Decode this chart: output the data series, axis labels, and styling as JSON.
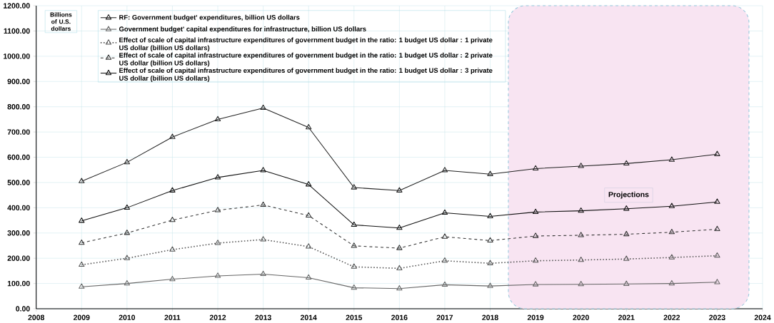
{
  "chart_data": {
    "type": "line",
    "ylabel": "Billions of U.S. dollars",
    "x": [
      2009,
      2010,
      2011,
      2012,
      2013,
      2014,
      2015,
      2016,
      2017,
      2018,
      2019,
      2020,
      2021,
      2022,
      2023
    ],
    "series": [
      {
        "name": "RF: Government budget' expenditures, billion US dollars",
        "color": "#222222",
        "line_style": "solid",
        "values": [
          505,
          580,
          680,
          750,
          795,
          718,
          480,
          468,
          548,
          533,
          555,
          565,
          575,
          590,
          612
        ]
      },
      {
        "name": "Government budget' capital expenditures for infrastructure, billion US dollars",
        "color": "#666666",
        "line_style": "solid",
        "values": [
          87,
          100,
          117,
          130,
          137,
          123,
          83,
          80,
          95,
          90,
          96,
          97,
          98,
          100,
          105
        ]
      },
      {
        "name": "Effect of scale of capital infrastructure expenditures of government budget in the ratio: 1 budget US dollar : 1 private US dollar (billion US dollars)",
        "color": "#555555",
        "line_style": "dotted",
        "values": [
          174,
          200,
          234,
          260,
          274,
          246,
          166,
          160,
          190,
          180,
          190,
          193,
          197,
          203,
          210
        ]
      },
      {
        "name": "Effect of scale of capital infrastructure expenditures of government budget in the ratio: 1 budget US dollar : 2 private US dollar (billion US dollars)",
        "color": "#333333",
        "line_style": "dashed",
        "values": [
          261,
          300,
          351,
          390,
          411,
          369,
          249,
          240,
          285,
          270,
          288,
          291,
          295,
          303,
          315
        ]
      },
      {
        "name": "Effect of scale of capital infrastructure expenditures of government budget in the ratio: 1 budget US dollar : 3 private US dollar (billion US dollars)",
        "color": "#111111",
        "line_style": "solid",
        "values": [
          348,
          400,
          468,
          520,
          548,
          492,
          332,
          320,
          380,
          366,
          383,
          388,
          396,
          406,
          423
        ]
      }
    ],
    "xlim": [
      2008,
      2024
    ],
    "xticks": [
      2008,
      2009,
      2010,
      2011,
      2012,
      2013,
      2014,
      2015,
      2016,
      2017,
      2018,
      2019,
      2020,
      2021,
      2022,
      2023,
      2024
    ],
    "ylim": [
      0,
      1200
    ],
    "yticks": [
      {
        "value": 0,
        "label": "0.00"
      },
      {
        "value": 100,
        "label": "100.00"
      },
      {
        "value": 200,
        "label": "200.00"
      },
      {
        "value": 300,
        "label": "300.00"
      },
      {
        "value": 400,
        "label": "400.00"
      },
      {
        "value": 500,
        "label": "500.00"
      },
      {
        "value": 600,
        "label": "600.00"
      },
      {
        "value": 700,
        "label": "700.00"
      },
      {
        "value": 800,
        "label": "800.00"
      },
      {
        "value": 900,
        "label": "900.00"
      },
      {
        "value": 1000,
        "label": "1000.00"
      },
      {
        "value": 1100,
        "label": "1100.00"
      },
      {
        "value": 1200,
        "label": "1200.00"
      }
    ],
    "bands": [
      {
        "axis": "x",
        "from": 2018.4,
        "to": 2023.7,
        "label": "Projections",
        "color": "#f8e4f2"
      }
    ],
    "grid": true,
    "legend": "top",
    "marker": "triangle"
  }
}
